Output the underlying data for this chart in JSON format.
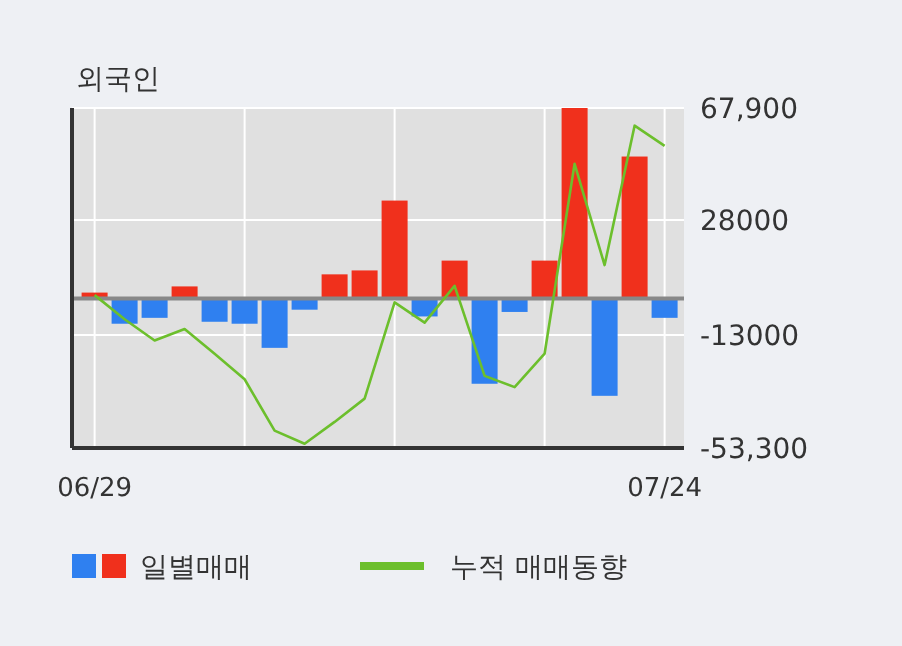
{
  "chart_data": {
    "type": "bar",
    "title": "외국인",
    "categories": [
      "06/29",
      null,
      null,
      null,
      null,
      null,
      null,
      null,
      null,
      null,
      null,
      null,
      null,
      null,
      null,
      null,
      null,
      null,
      null,
      "07/24"
    ],
    "series": [
      {
        "name": "일별매매",
        "values": [
          2100,
          -9000,
          -6900,
          4300,
          -8300,
          -9000,
          -17600,
          -4000,
          8600,
          10000,
          34900,
          -6400,
          13500,
          -30400,
          -4800,
          13500,
          67900,
          -34700,
          50600,
          -6900
        ],
        "colors": [
          "#f0301c",
          "#2f80f0",
          "#2f80f0",
          "#f0301c",
          "#2f80f0",
          "#2f80f0",
          "#2f80f0",
          "#2f80f0",
          "#f0301c",
          "#f0301c",
          "#f0301c",
          "#2f80f0",
          "#f0301c",
          "#2f80f0",
          "#2f80f0",
          "#f0301c",
          "#f0301c",
          "#2f80f0",
          "#f0301c",
          "#2f80f0"
        ]
      },
      {
        "name": "누적 매매동향",
        "type": "line",
        "color": "#6cbf2c",
        "values": [
          1200,
          -7400,
          -15000,
          -10900,
          -19700,
          -28800,
          -47100,
          -51800,
          -44000,
          -35700,
          -1400,
          -8600,
          4500,
          -27600,
          -31600,
          -19700,
          48000,
          11900,
          61600,
          54400
        ]
      }
    ],
    "ylim": [
      -53300,
      67900
    ],
    "yticks": [
      {
        "value": 67900,
        "label": "67,900"
      },
      28000,
      -13000,
      {
        "value": -53300,
        "label": "-53,300"
      }
    ],
    "grid": true,
    "legend": "bottom"
  }
}
